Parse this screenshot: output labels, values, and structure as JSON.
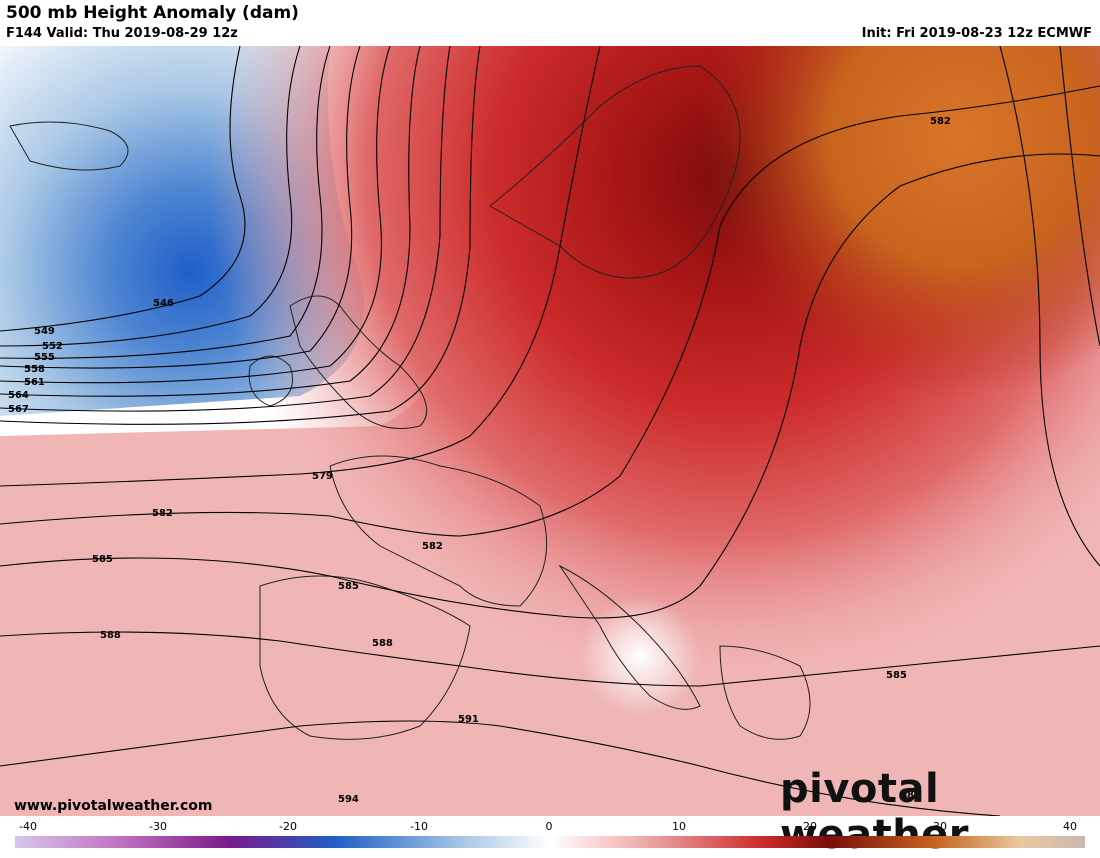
{
  "header": {
    "title": "500 mb Height Anomaly (dam)",
    "valid": "F144 Valid: Thu 2019-08-29 12z",
    "init": "Init: Fri 2019-08-23 12z ECMWF"
  },
  "footer": {
    "website": "www.pivotalweather.com",
    "brand": "pivotal weather"
  },
  "colorbar": {
    "labels": [
      "-40",
      "-30",
      "-20",
      "-10",
      "0",
      "10",
      "20",
      "30",
      "40"
    ]
  },
  "contours": {
    "l546": "546",
    "l549": "549",
    "l552": "552",
    "l555": "555",
    "l558": "558",
    "l561": "561",
    "l564": "564",
    "l567": "567",
    "l579": "579",
    "l582a": "582",
    "l582b": "582",
    "l582c": "582",
    "l585a": "585",
    "l585b": "585",
    "l585c": "585",
    "l588a": "588",
    "l588b": "588",
    "l588c": "588",
    "l591": "591",
    "l594": "594"
  },
  "colors": {
    "deep_blue": "#1f5fc8",
    "light_blue": "#a9c8e6",
    "white": "#ffffff",
    "light_red": "#f1b2b2",
    "red": "#cc2a2a",
    "dark_red": "#7a0c0c",
    "orange": "#c8641e"
  }
}
